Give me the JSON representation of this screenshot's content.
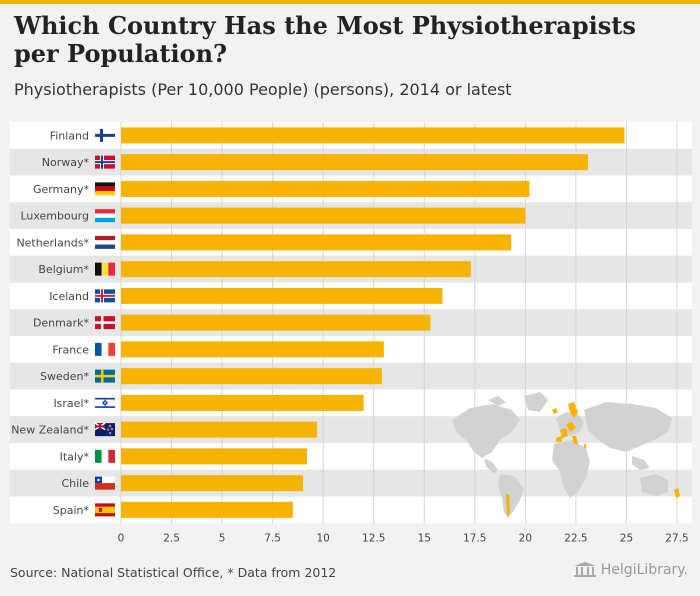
{
  "header": {
    "title": "Which Country Has the Most Physiotherapists per Population?",
    "subtitle": "Physiotherapists (Per 10,000 People) (persons), 2014 or latest"
  },
  "footer": {
    "source": "Source: National Statistical Office, * Data from 2012",
    "logo_text": "HelgiLibrary."
  },
  "colors": {
    "bar": "#f6b400",
    "accent": "#f6b400",
    "row_light": "#ffffff",
    "row_dark": "#e6e6e6"
  },
  "chart_data": {
    "type": "bar",
    "orientation": "horizontal",
    "title": "Which Country Has the Most Physiotherapists per Population?",
    "subtitle": "Physiotherapists (Per 10,000 People) (persons), 2014 or latest",
    "xlabel": "",
    "ylabel": "",
    "xlim": [
      0,
      27.5
    ],
    "xticks": [
      "0",
      "2.5",
      "5",
      "7.5",
      "10",
      "12.5",
      "15",
      "17.5",
      "20",
      "22.5",
      "25",
      "27.5"
    ],
    "grid": true,
    "categories": [
      "Finland",
      "Norway*",
      "Germany*",
      "Luxembourg",
      "Netherlands*",
      "Belgium*",
      "Iceland",
      "Denmark*",
      "France",
      "Sweden*",
      "Israel*",
      "New Zealand*",
      "Italy*",
      "Chile",
      "Spain*"
    ],
    "flags": [
      "finland-flag-icon",
      "norway-flag-icon",
      "germany-flag-icon",
      "luxembourg-flag-icon",
      "netherlands-flag-icon",
      "belgium-flag-icon",
      "iceland-flag-icon",
      "denmark-flag-icon",
      "france-flag-icon",
      "sweden-flag-icon",
      "israel-flag-icon",
      "new-zealand-flag-icon",
      "italy-flag-icon",
      "chile-flag-icon",
      "spain-flag-icon"
    ],
    "values": [
      24.9,
      23.1,
      20.2,
      20.0,
      19.3,
      17.3,
      15.9,
      15.3,
      13.0,
      12.9,
      12.0,
      9.7,
      9.2,
      9.0,
      8.5
    ]
  }
}
